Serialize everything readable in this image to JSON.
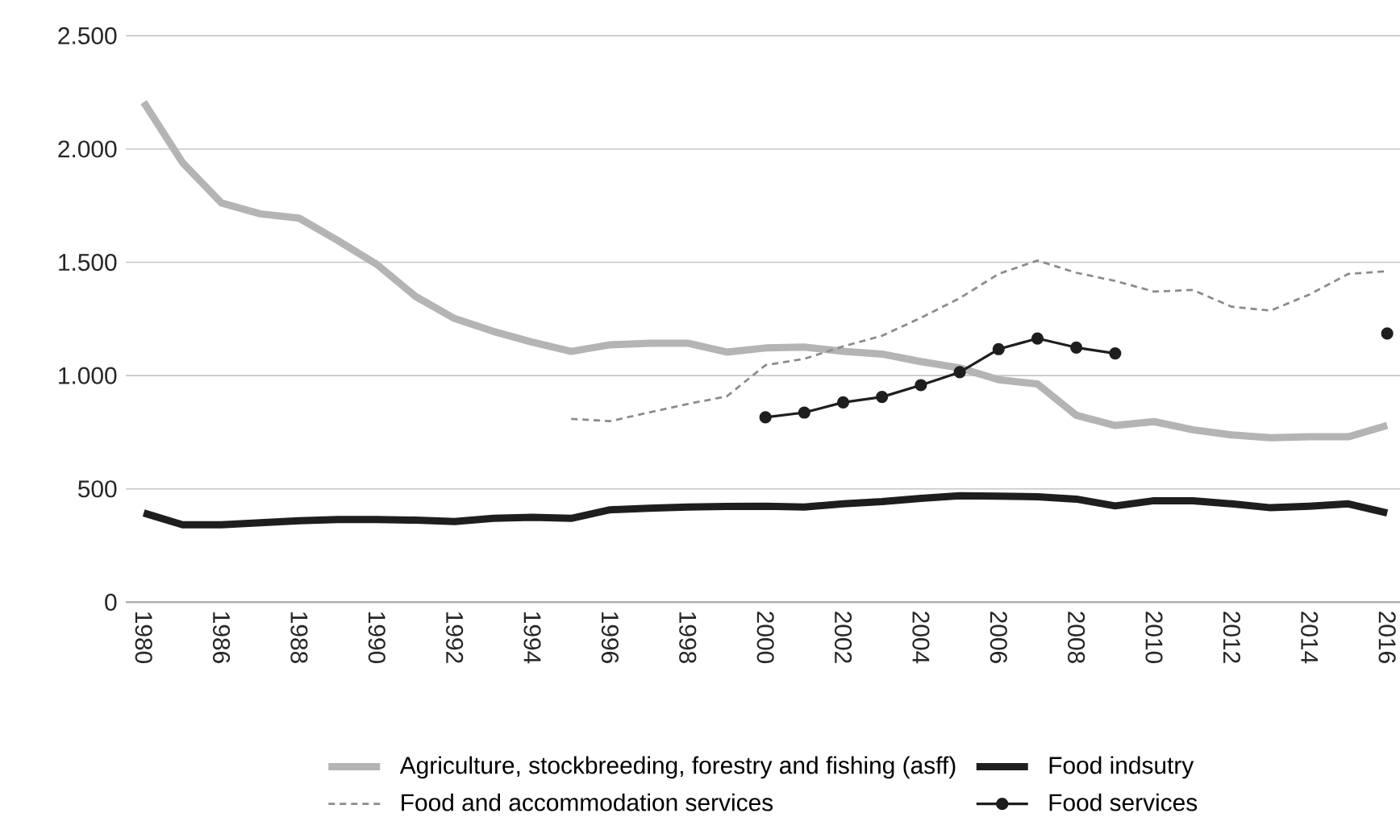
{
  "chart_data": {
    "type": "line",
    "categories": [
      "1980",
      null,
      "1986",
      null,
      "1988",
      null,
      "1990",
      null,
      "1992",
      null,
      "1994",
      null,
      "1996",
      null,
      "1998",
      null,
      "2000",
      null,
      "2002",
      null,
      "2004",
      null,
      "2006",
      null,
      "2008",
      null,
      "2010",
      null,
      "2012",
      null,
      "2014",
      null,
      "2016"
    ],
    "series": [
      {
        "name": "Agriculture, stockbreeding, forestry and fishing (asff)",
        "color": "#b4b4b6",
        "line_style": "solid",
        "marker": "none",
        "values": [
          2207,
          1940,
          1762,
          1714,
          1695,
          1596,
          1491,
          1349,
          1252,
          1195,
          1148,
          1107,
          1136,
          1143,
          1143,
          1104,
          1122,
          1126,
          1107,
          1095,
          1062,
          1034,
          982,
          963,
          825,
          780,
          797,
          761,
          738,
          726,
          730,
          730,
          780
        ]
      },
      {
        "name": "Food indsutry",
        "color": "#1e1e1e",
        "line_style": "solid",
        "marker": "none",
        "values": [
          394,
          342,
          342,
          351,
          360,
          365,
          365,
          362,
          356,
          370,
          375,
          370,
          408,
          415,
          420,
          423,
          424,
          420,
          434,
          444,
          458,
          470,
          468,
          465,
          455,
          425,
          448,
          448,
          434,
          417,
          424,
          434,
          394
        ]
      },
      {
        "name": "Food and accommodation services",
        "color": "#8c8c8e",
        "line_style": "dashed",
        "marker": "none",
        "values": [
          null,
          null,
          null,
          null,
          null,
          null,
          null,
          null,
          null,
          null,
          null,
          809,
          799,
          837,
          875,
          908,
          1046,
          1074,
          1129,
          1176,
          1255,
          1342,
          1449,
          1508,
          1454,
          1418,
          1371,
          1378,
          1304,
          1287,
          1358,
          1449,
          1461
        ]
      },
      {
        "name": "Food services",
        "color": "#1e1e1e",
        "line_style": "solid",
        "marker": "circle",
        "values": [
          null,
          null,
          null,
          null,
          null,
          null,
          null,
          null,
          null,
          null,
          null,
          null,
          null,
          null,
          null,
          null,
          816,
          837,
          882,
          906,
          958,
          1015,
          1117,
          1164,
          1124,
          1098,
          null,
          null,
          null,
          null,
          null,
          null,
          1186
        ]
      }
    ],
    "ylim": [
      0,
      2500
    ],
    "yticks": [
      {
        "value": 0,
        "label": "0"
      },
      {
        "value": 500,
        "label": "500"
      },
      {
        "value": 1000,
        "label": "1.000"
      },
      {
        "value": 1500,
        "label": "1.500"
      },
      {
        "value": 2000,
        "label": "2.000"
      },
      {
        "value": 2500,
        "label": "2.500"
      }
    ],
    "grid": "y",
    "legend": "bottom"
  }
}
